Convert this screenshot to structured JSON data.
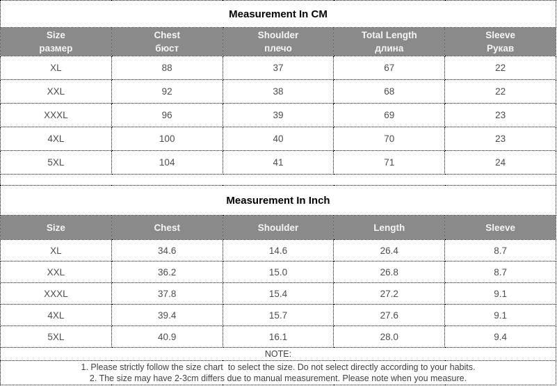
{
  "colors": {
    "header_bg": "#8a8a8a",
    "header_text": "#f5f5f5",
    "title_text": "#000000",
    "data_text": "#4d4d4d",
    "note_text": "#404040",
    "border": "#000000"
  },
  "cm": {
    "title": "Measurement In CM",
    "headers": [
      {
        "en": "Size",
        "ru": "размер"
      },
      {
        "en": "Chest",
        "ru": "бюст"
      },
      {
        "en": "Shoulder",
        "ru": "плечо"
      },
      {
        "en": "Total Length",
        "ru": "длина"
      },
      {
        "en": "Sleeve",
        "ru": "Рукав"
      }
    ],
    "rows": [
      {
        "size": "XL",
        "chest": "88",
        "shoulder": "37",
        "length": "67",
        "sleeve": "22"
      },
      {
        "size": "XXL",
        "chest": "92",
        "shoulder": "38",
        "length": "68",
        "sleeve": "22"
      },
      {
        "size": "XXXL",
        "chest": "96",
        "shoulder": "39",
        "length": "69",
        "sleeve": "23"
      },
      {
        "size": "4XL",
        "chest": "100",
        "shoulder": "40",
        "length": "70",
        "sleeve": "23"
      },
      {
        "size": "5XL",
        "chest": "104",
        "shoulder": "41",
        "length": "71",
        "sleeve": "24"
      }
    ]
  },
  "inch": {
    "title": "Measurement In Inch",
    "headers": [
      "Size",
      "Chest",
      "Shoulder",
      "Length",
      "Sleeve"
    ],
    "rows": [
      {
        "size": "XL",
        "chest": "34.6",
        "shoulder": "14.6",
        "length": "26.4",
        "sleeve": "8.7"
      },
      {
        "size": "XXL",
        "chest": "36.2",
        "shoulder": "15.0",
        "length": "26.8",
        "sleeve": "8.7"
      },
      {
        "size": "XXXL",
        "chest": "37.8",
        "shoulder": "15.4",
        "length": "27.2",
        "sleeve": "9.1"
      },
      {
        "size": "4XL",
        "chest": "39.4",
        "shoulder": "15.7",
        "length": "27.6",
        "sleeve": "9.1"
      },
      {
        "size": "5XL",
        "chest": "40.9",
        "shoulder": "16.1",
        "length": "28.0",
        "sleeve": "9.4"
      }
    ]
  },
  "note": {
    "label": "NOTE:",
    "lines": [
      "1. Please strictly follow the size chart  to select the size. Do not select directly according to your habits.",
      "2. The size may have 2-3cm differs due to manual measurement. Please note when you measure."
    ]
  }
}
